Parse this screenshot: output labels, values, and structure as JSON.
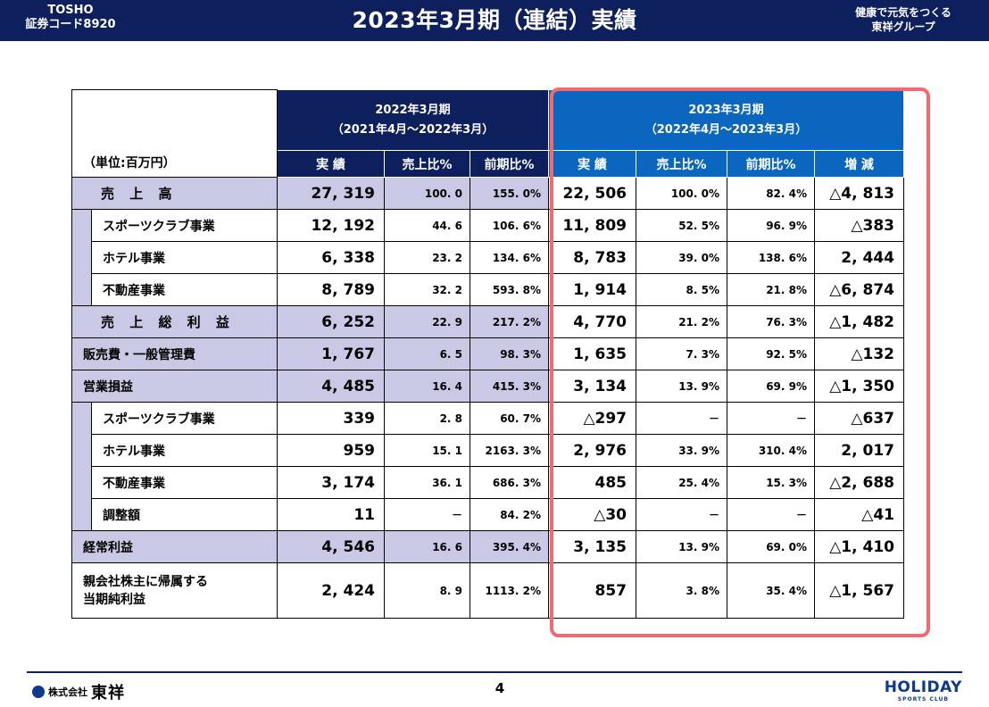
{
  "header": {
    "company_short": "TOSHO",
    "code": "証券コード8920",
    "title": "2023年3月期（連結）実績",
    "slogan_1": "健康で元気をつくる",
    "slogan_2": "東祥グループ"
  },
  "table": {
    "unit": "（単位:百万円）",
    "year1": {
      "title": "2022年3月期",
      "period": "（2021年4月～2022年3月）"
    },
    "year2": {
      "title": "2023年3月期",
      "period": "（2022年4月～2023年3月）"
    },
    "col_headers_1": [
      "実 績",
      "売上比%",
      "前期比%"
    ],
    "col_headers_2": [
      "実 績",
      "売上比%",
      "前期比%",
      "増 減"
    ],
    "rows": [
      {
        "label": "売 上 高",
        "level": "major",
        "v": [
          "27, 319",
          "100. 0",
          "155. 0%",
          "22, 506",
          "100. 0%",
          "82. 4%",
          "△4, 813"
        ]
      },
      {
        "label": "スポーツクラブ事業",
        "level": "sub",
        "v": [
          "12, 192",
          "44. 6",
          "106. 6%",
          "11, 809",
          "52. 5%",
          "96. 9%",
          "△383"
        ]
      },
      {
        "label": "ホテル事業",
        "level": "sub",
        "v": [
          "6, 338",
          "23. 2",
          "134. 6%",
          "8, 783",
          "39. 0%",
          "138. 6%",
          "2, 444"
        ]
      },
      {
        "label": "不動産事業",
        "level": "sub",
        "v": [
          "8, 789",
          "32. 2",
          "593. 8%",
          "1, 914",
          "8. 5%",
          "21. 8%",
          "△6, 874"
        ]
      },
      {
        "label": "売 上 総 利 益",
        "level": "major",
        "v": [
          "6, 252",
          "22. 9",
          "217. 2%",
          "4, 770",
          "21. 2%",
          "76. 3%",
          "△1, 482"
        ]
      },
      {
        "label": "販売費・一般管理費",
        "level": "medium",
        "v": [
          "1, 767",
          "6. 5",
          "98. 3%",
          "1, 635",
          "7. 3%",
          "92. 5%",
          "△132"
        ]
      },
      {
        "label": "営業損益",
        "level": "medium",
        "v": [
          "4, 485",
          "16. 4",
          "415. 3%",
          "3, 134",
          "13. 9%",
          "69. 9%",
          "△1, 350"
        ]
      },
      {
        "label": "スポーツクラブ事業",
        "level": "sub",
        "v": [
          "339",
          "2. 8",
          "60. 7%",
          "△297",
          "－",
          "－",
          "△637"
        ]
      },
      {
        "label": "ホテル事業",
        "level": "sub",
        "v": [
          "959",
          "15. 1",
          "2163. 3%",
          "2, 976",
          "33. 9%",
          "310. 4%",
          "2, 017"
        ]
      },
      {
        "label": "不動産事業",
        "level": "sub",
        "v": [
          "3, 174",
          "36. 1",
          "686. 3%",
          "485",
          "25. 4%",
          "15. 3%",
          "△2, 688"
        ]
      },
      {
        "label": "調整額",
        "level": "sub",
        "v": [
          "11",
          "－",
          "84. 2%",
          "△30",
          "－",
          "－",
          "△41"
        ]
      },
      {
        "label": "経常利益",
        "level": "medium",
        "v": [
          "4, 546",
          "16. 6",
          "395. 4%",
          "3, 135",
          "13. 9%",
          "69. 0%",
          "△1, 410"
        ]
      },
      {
        "label": "親会社株主に帰属する\n当期純利益",
        "level": "last",
        "v": [
          "2, 424",
          "8. 9",
          "1113. 2%",
          "857",
          "3. 8%",
          "35. 4%",
          "△1, 567"
        ]
      }
    ]
  },
  "footer": {
    "company_prefix": "株式会社",
    "company_name": "東祥",
    "page": "4",
    "brand": "HOLIDAY",
    "brand_sub": "SPORTS CLUB"
  },
  "colors": {
    "navy": "#0d1f5c",
    "blue": "#0b66bf",
    "stub": "#c9c9e6",
    "highlight": "#f06a73"
  }
}
